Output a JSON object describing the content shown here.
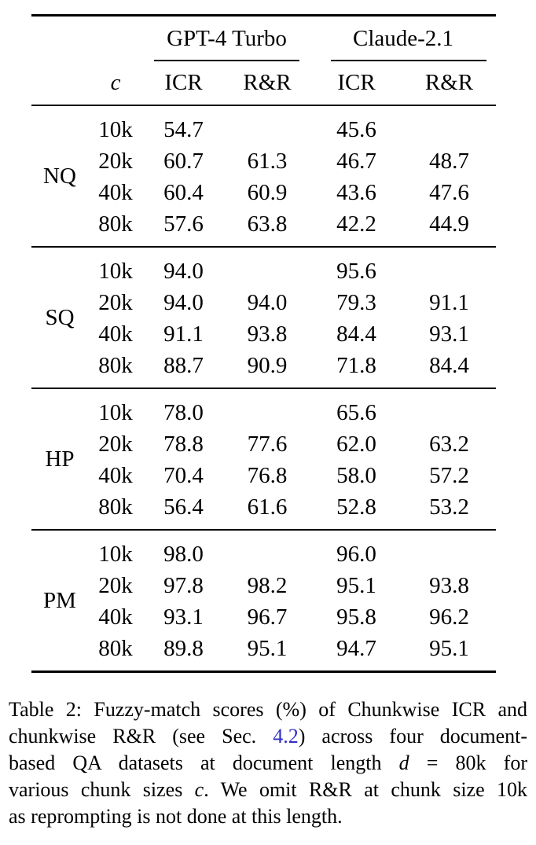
{
  "table": {
    "col_header_c": "c",
    "group_headers": [
      "GPT-4 Turbo",
      "Claude-2.1"
    ],
    "sub_headers": [
      "ICR",
      "R&R",
      "ICR",
      "R&R"
    ],
    "groups": [
      {
        "label": "NQ",
        "rows": [
          {
            "c": "10k",
            "values": [
              "54.7",
              "",
              "45.6",
              ""
            ]
          },
          {
            "c": "20k",
            "values": [
              "60.7",
              "61.3",
              "46.7",
              "48.7"
            ]
          },
          {
            "c": "40k",
            "values": [
              "60.4",
              "60.9",
              "43.6",
              "47.6"
            ]
          },
          {
            "c": "80k",
            "values": [
              "57.6",
              "63.8",
              "42.2",
              "44.9"
            ]
          }
        ]
      },
      {
        "label": "SQ",
        "rows": [
          {
            "c": "10k",
            "values": [
              "94.0",
              "",
              "95.6",
              ""
            ]
          },
          {
            "c": "20k",
            "values": [
              "94.0",
              "94.0",
              "79.3",
              "91.1"
            ]
          },
          {
            "c": "40k",
            "values": [
              "91.1",
              "93.8",
              "84.4",
              "93.1"
            ]
          },
          {
            "c": "80k",
            "values": [
              "88.7",
              "90.9",
              "71.8",
              "84.4"
            ]
          }
        ]
      },
      {
        "label": "HP",
        "rows": [
          {
            "c": "10k",
            "values": [
              "78.0",
              "",
              "65.6",
              ""
            ]
          },
          {
            "c": "20k",
            "values": [
              "78.8",
              "77.6",
              "62.0",
              "63.2"
            ]
          },
          {
            "c": "40k",
            "values": [
              "70.4",
              "76.8",
              "58.0",
              "57.2"
            ]
          },
          {
            "c": "80k",
            "values": [
              "56.4",
              "61.6",
              "52.8",
              "53.2"
            ]
          }
        ]
      },
      {
        "label": "PM",
        "rows": [
          {
            "c": "10k",
            "values": [
              "98.0",
              "",
              "96.0",
              ""
            ]
          },
          {
            "c": "20k",
            "values": [
              "97.8",
              "98.2",
              "95.1",
              "93.8"
            ]
          },
          {
            "c": "40k",
            "values": [
              "93.1",
              "96.7",
              "95.8",
              "96.2"
            ]
          },
          {
            "c": "80k",
            "values": [
              "89.8",
              "95.1",
              "94.7",
              "95.1"
            ]
          }
        ]
      }
    ]
  },
  "caption": {
    "lines": [
      [
        {
          "t": "Table 2: Fuzzy-match scores (%) of Chunkwise ICR and"
        }
      ],
      [
        {
          "t": "chunkwise R&R (see Sec. "
        },
        {
          "t": "4.2",
          "s": "link"
        },
        {
          "t": ") across four document-"
        }
      ],
      [
        {
          "t": "based QA datasets at document length "
        },
        {
          "t": "d",
          "s": "i"
        },
        {
          "t": " = 80k for"
        }
      ],
      [
        {
          "t": "various chunk sizes "
        },
        {
          "t": "c",
          "s": "i"
        },
        {
          "t": ". We omit R&R at chunk size 10k"
        }
      ],
      [
        {
          "t": "as reprompting is not done at this length."
        }
      ]
    ]
  },
  "colors": {
    "text": "#000000",
    "background": "#ffffff",
    "link": "#3030c0",
    "rule": "#000000"
  }
}
